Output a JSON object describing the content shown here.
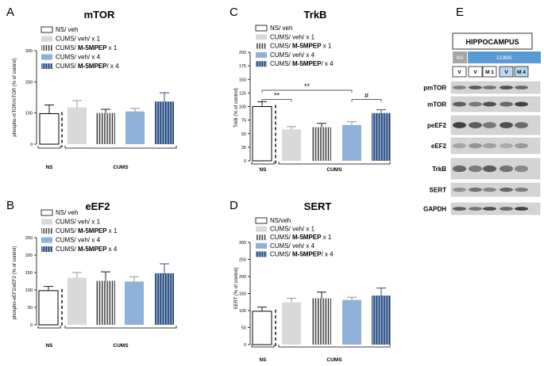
{
  "colors": {
    "ns": "#ffffff",
    "veh_x1": "#d9d9d9",
    "mpep_x1_stripe": "#3a3a3a",
    "veh_x4": "#8fb0d8",
    "mpep_x4_stripe": "#1f3864",
    "cums_header": "#5b9bd5",
    "ns_header": "#a6a6a6"
  },
  "chart_data": [
    {
      "type": "bar",
      "panel": "A",
      "title": "mTOR",
      "ylabel": "phospho-mTOR/mTOR (% of control)",
      "ylim": [
        0,
        300
      ],
      "yticks": [
        0,
        100,
        200,
        300
      ],
      "legend": [
        {
          "text": "NS/ veh",
          "bold": ""
        },
        {
          "text": "CUMS/ veh/ x 1",
          "bold": ""
        },
        {
          "text": "CUMS/ ",
          "bold": "M-5MPEP",
          "suffix": " x 1"
        },
        {
          "text": "CUMS/ veh/ x 4",
          "bold": ""
        },
        {
          "text": "CUMS/ ",
          "bold": "M-5MPEP",
          "suffix": "/ x 4"
        }
      ],
      "values": [
        98,
        118,
        100,
        105,
        137
      ],
      "errors": [
        28,
        22,
        12,
        10,
        28
      ],
      "groups": [
        "NS",
        "CUMS"
      ],
      "significance": []
    },
    {
      "type": "bar",
      "panel": "B",
      "title": "eEF2",
      "ylabel": "phospho-eEF2/eEF2 (% of control)",
      "ylim": [
        0,
        250
      ],
      "yticks": [
        0,
        50,
        100,
        150,
        200,
        250
      ],
      "legend": [
        {
          "text": "NS/ veh",
          "bold": ""
        },
        {
          "text": "CUMS/ veh/ x 1",
          "bold": ""
        },
        {
          "text": "CUMS/ ",
          "bold": "M-5MPEP",
          "suffix": " x 1"
        },
        {
          "text": "CUMS/ veh/ x 4",
          "bold": ""
        },
        {
          "text": "CUMS/ ",
          "bold": "M-5MPEP",
          "suffix": " x 4"
        }
      ],
      "values": [
        98,
        135,
        126,
        124,
        148
      ],
      "errors": [
        12,
        15,
        26,
        14,
        27
      ],
      "groups": [
        "NS",
        "CUMS"
      ],
      "significance": []
    },
    {
      "type": "bar",
      "panel": "C",
      "title": "TrkB",
      "ylabel": "TrkB (% of control)",
      "ylim": [
        0,
        200
      ],
      "yticks": [
        0,
        25,
        50,
        75,
        100,
        125,
        150,
        175,
        200
      ],
      "legend": [
        {
          "text": "NS/ veh",
          "bold": ""
        },
        {
          "text": "CUMS/ veh/ x 1",
          "bold": ""
        },
        {
          "text": "CUMS/ ",
          "bold": "M-5MPEP",
          "suffix": " x 1"
        },
        {
          "text": "CUMS/ veh/ x 4",
          "bold": ""
        },
        {
          "text": "CUMS/ ",
          "bold": "M-5MPEP",
          "suffix": "/ x 4"
        }
      ],
      "values": [
        100,
        58,
        62,
        66,
        88
      ],
      "errors": [
        9,
        5,
        7,
        6,
        6
      ],
      "groups": [
        "NS",
        "CUMS"
      ],
      "significance": [
        {
          "from": 0,
          "to": 1,
          "level": 113,
          "label": "**"
        },
        {
          "from": 0,
          "to": 3,
          "level": 130,
          "label": "**"
        },
        {
          "from": 3,
          "to": 4,
          "level": 113,
          "label": "#"
        }
      ]
    },
    {
      "type": "bar",
      "panel": "D",
      "title": "SERT",
      "ylabel": "SERT (% of control)",
      "ylim": [
        0,
        300
      ],
      "yticks": [
        0,
        50,
        100,
        150,
        200,
        250,
        300
      ],
      "legend": [
        {
          "text": "NS/veh",
          "bold": ""
        },
        {
          "text": "CUMS/ veh/ x 1",
          "bold": ""
        },
        {
          "text": "CUMS/ ",
          "bold": "M-5MPEP",
          "suffix": " x 1"
        },
        {
          "text": "CUMS/ veh/ x 4",
          "bold": ""
        },
        {
          "text": "CUMS/ ",
          "bold": "M-5MPEP",
          "suffix": "/ x 4"
        }
      ],
      "values": [
        98,
        124,
        136,
        131,
        144
      ],
      "errors": [
        12,
        12,
        18,
        8,
        22
      ],
      "groups": [
        "NS",
        "CUMS"
      ],
      "significance": []
    }
  ],
  "western_blot": {
    "panel": "E",
    "title": "HIPPOCAMPUS",
    "header_ns": "NS",
    "header_cums": "CUMS",
    "lanes": [
      "V",
      "V",
      "M 1",
      "V",
      "M 4"
    ],
    "rows": [
      "pmTOR",
      "mTOR",
      "peEF2",
      "eEF2",
      "TrkB",
      "SERT",
      "GAPDH"
    ]
  }
}
